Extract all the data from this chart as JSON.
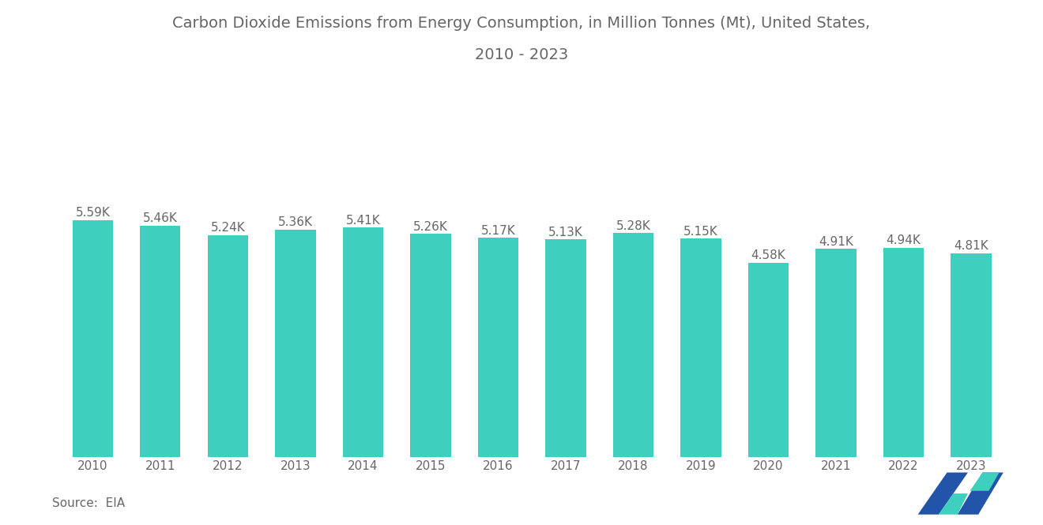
{
  "title_line1": "Carbon Dioxide Emissions from Energy Consumption, in Million Tonnes (Mt), United States,",
  "title_line2": "2010 - 2023",
  "years": [
    2010,
    2011,
    2012,
    2013,
    2014,
    2015,
    2016,
    2017,
    2018,
    2019,
    2020,
    2021,
    2022,
    2023
  ],
  "values": [
    5590,
    5460,
    5240,
    5360,
    5410,
    5260,
    5170,
    5130,
    5280,
    5150,
    4580,
    4910,
    4940,
    4810
  ],
  "labels": [
    "5.59K",
    "5.46K",
    "5.24K",
    "5.36K",
    "5.41K",
    "5.26K",
    "5.17K",
    "5.13K",
    "5.28K",
    "5.15K",
    "4.58K",
    "4.91K",
    "4.94K",
    "4.81K"
  ],
  "bar_color": "#3ECFBE",
  "background_color": "#ffffff",
  "source_text": "Source:  EIA",
  "title_fontsize": 14,
  "label_fontsize": 11,
  "tick_fontsize": 11,
  "source_fontsize": 11,
  "title_color": "#666666",
  "label_color": "#666666",
  "tick_color": "#666666",
  "bar_width": 0.6,
  "logo_blue": "#2255AA",
  "logo_teal": "#3ECFBE"
}
